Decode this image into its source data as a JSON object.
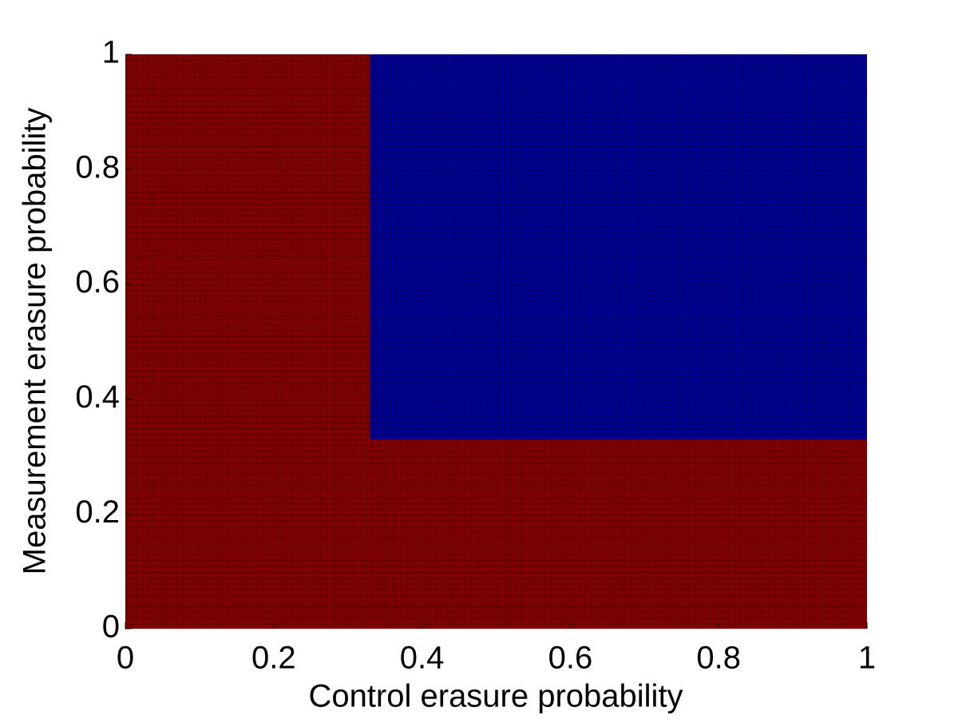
{
  "chart_data": {
    "type": "region",
    "xlabel": "Control erasure probability",
    "ylabel": "Measurement erasure probability",
    "xlim": [
      0,
      1
    ],
    "ylim": [
      0,
      1
    ],
    "xticks": [
      0,
      0.2,
      0.4,
      0.6,
      0.8,
      1
    ],
    "yticks": [
      0,
      0.2,
      0.4,
      0.6,
      0.8,
      1
    ],
    "regions": [
      {
        "x": [
          0,
          1
        ],
        "y": [
          0,
          1
        ],
        "color": "#800000"
      },
      {
        "x": [
          0.33,
          1
        ],
        "y": [
          0.33,
          1
        ],
        "color": "#000090"
      }
    ]
  }
}
